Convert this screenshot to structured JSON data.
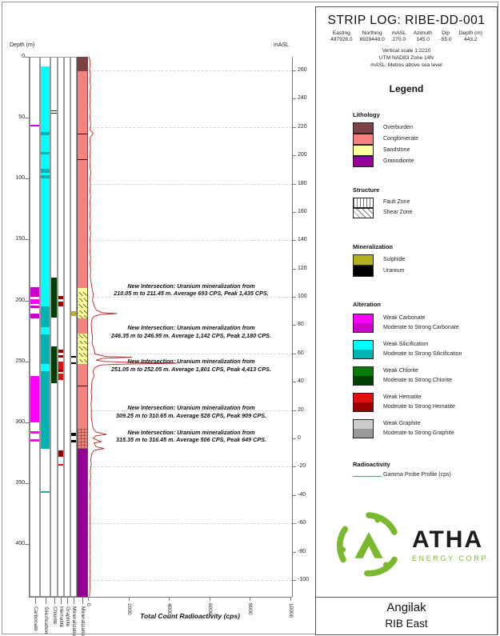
{
  "header": {
    "title": "STRIP LOG: RIBE-DD-001",
    "fields": [
      {
        "label": "Easting",
        "value": "497928.0"
      },
      {
        "label": "Northing",
        "value": "6929449.0"
      },
      {
        "label": "mASL",
        "value": "270.0"
      },
      {
        "label": "Azimuth",
        "value": "145.0"
      },
      {
        "label": "Dip",
        "value": "-55.0"
      },
      {
        "label": "Depth (m)",
        "value": "443.2"
      }
    ],
    "scale_lines": [
      "Vertical scale 1:2210",
      "UTM NAD83 Zone 14N",
      "mASL: Metres above sea level"
    ]
  },
  "legend": {
    "title": "Legend",
    "sections": [
      {
        "title": "Lithology",
        "type": "swatches",
        "items": [
          {
            "label": "Overburden",
            "color": "#7d4141"
          },
          {
            "label": "Conglomerate",
            "color": "#f4837f"
          },
          {
            "label": "Sandstone",
            "color": "#ffff99"
          },
          {
            "label": "Granodiorite",
            "color": "#950095"
          }
        ]
      },
      {
        "title": "Structure",
        "type": "patterns",
        "items": [
          {
            "label": "Fault Zone",
            "pattern": "fault"
          },
          {
            "label": "Shear Zone",
            "pattern": "shear"
          }
        ]
      },
      {
        "title": "Mineralization",
        "type": "swatches",
        "items": [
          {
            "label": "Sulphide",
            "color": "#b2b21f"
          },
          {
            "label": "Uranium",
            "color": "#000000"
          }
        ]
      },
      {
        "title": "Alteration",
        "type": "pairs",
        "items": [
          {
            "weak_label": "Weak Carbonate",
            "strong_label": "Moderate to Strong Carbonate",
            "weak_color": "#ff00ff",
            "strong_color": "#cc00cc"
          },
          {
            "weak_label": "Weak Silicification",
            "strong_label": "Moderate to Strong Silicification",
            "weak_color": "#00ffff",
            "strong_color": "#00b3b3"
          },
          {
            "weak_label": "Weak Chlorite",
            "strong_label": "Moderate to Strong Chlorite",
            "weak_color": "#0a7a0a",
            "strong_color": "#063f06"
          },
          {
            "weak_label": "Weak Hematite",
            "strong_label": "Moderate to Strong Hematite",
            "weak_color": "#e01010",
            "strong_color": "#9a0000"
          },
          {
            "weak_label": "Weak Graphite",
            "strong_label": "Moderate to Strong Graphite",
            "weak_color": "#cccccc",
            "strong_color": "#999999"
          }
        ]
      },
      {
        "title": "Radioactivity",
        "type": "line",
        "items": [
          {
            "label": "Gamma Probe Profile (cps)",
            "color": "#cc6666"
          }
        ]
      }
    ]
  },
  "logo": {
    "text": "ATHA",
    "subtitle": "ENERGY CORP.",
    "green": "#7ab82e"
  },
  "footer": {
    "project": "Angilak",
    "area": "RIB East"
  },
  "chart_data": {
    "type": "strip-log",
    "depth_axis": {
      "label": "Depth (m)",
      "ticks": [
        0,
        50,
        100,
        150,
        200,
        250,
        300,
        350,
        400
      ],
      "max_depth": 443.2
    },
    "masl_axis": {
      "label": "mASL",
      "collar_masl": 270.0,
      "ticks": [
        260,
        240,
        220,
        200,
        180,
        160,
        140,
        120,
        100,
        80,
        60,
        40,
        20,
        0,
        -20,
        -40,
        -60,
        -80,
        -100
      ]
    },
    "cps_axis": {
      "label": "Total Count Radioactivity (cps)",
      "ticks": [
        0,
        2000,
        4000,
        6000,
        8000,
        10000
      ],
      "max": 10000
    },
    "tracks": [
      {
        "name": "Carbonate",
        "weak_color": "#ff00ff",
        "strong_color": "#cc00cc",
        "segments": [
          {
            "from": 55.5,
            "to": 57,
            "level": "strong"
          },
          {
            "from": 189,
            "to": 197,
            "level": "strong"
          },
          {
            "from": 199,
            "to": 203,
            "level": "weak"
          },
          {
            "from": 204.5,
            "to": 206.5,
            "level": "strong"
          },
          {
            "from": 211,
            "to": 215,
            "level": "strong"
          },
          {
            "from": 262,
            "to": 300,
            "level": "weak"
          },
          {
            "from": 307.5,
            "to": 309.5,
            "level": "weak"
          },
          {
            "from": 314,
            "to": 316,
            "level": "weak"
          }
        ]
      },
      {
        "name": "Silicification",
        "weak_color": "#00ffff",
        "strong_color": "#00b3b3",
        "segments": [
          {
            "from": 8,
            "to": 62,
            "level": "weak"
          },
          {
            "from": 62,
            "to": 64.5,
            "level": "strong"
          },
          {
            "from": 64.5,
            "to": 78,
            "level": "weak"
          },
          {
            "from": 78,
            "to": 80,
            "level": "strong"
          },
          {
            "from": 80,
            "to": 92,
            "level": "weak"
          },
          {
            "from": 92,
            "to": 95,
            "level": "strong"
          },
          {
            "from": 95,
            "to": 97,
            "level": "weak"
          },
          {
            "from": 97,
            "to": 99.5,
            "level": "strong"
          },
          {
            "from": 99.5,
            "to": 205,
            "level": "weak"
          },
          {
            "from": 205,
            "to": 222,
            "level": "strong"
          },
          {
            "from": 222,
            "to": 228,
            "level": "weak"
          },
          {
            "from": 228,
            "to": 252,
            "level": "strong"
          },
          {
            "from": 252,
            "to": 258,
            "level": "weak"
          },
          {
            "from": 258,
            "to": 322,
            "level": "strong"
          },
          {
            "from": 356.5,
            "to": 358,
            "level": "strong"
          }
        ]
      },
      {
        "name": "Chlorite",
        "weak_color": "#0a7a0a",
        "strong_color": "#063f06",
        "segments": [
          {
            "from": 44,
            "to": 44.8,
            "level": "strong"
          },
          {
            "from": 45.8,
            "to": 46.6,
            "level": "strong"
          },
          {
            "from": 181,
            "to": 214,
            "level": "strong"
          },
          {
            "from": 238,
            "to": 268,
            "level": "strong"
          }
        ]
      },
      {
        "name": "Hematite",
        "weak_color": "#e01010",
        "strong_color": "#9a0000",
        "segments": [
          {
            "from": 196,
            "to": 199,
            "level": "strong"
          },
          {
            "from": 201,
            "to": 205,
            "level": "strong"
          },
          {
            "from": 240,
            "to": 243,
            "level": "strong"
          },
          {
            "from": 245,
            "to": 247,
            "level": "strong"
          },
          {
            "from": 250,
            "to": 257,
            "level": "weak"
          },
          {
            "from": 257,
            "to": 259,
            "level": "strong"
          },
          {
            "from": 260,
            "to": 265,
            "level": "weak"
          },
          {
            "from": 323,
            "to": 328,
            "level": "strong"
          },
          {
            "from": 334.5,
            "to": 335.5,
            "level": "weak"
          }
        ]
      },
      {
        "name": "Graphite",
        "weak_color": "#cccccc",
        "strong_color": "#999999",
        "segments": []
      },
      {
        "name": "Mineralization",
        "weak_color": "#b2b21f",
        "strong_color": "#000000",
        "segments": [
          {
            "from": 208.5,
            "to": 213,
            "level": "weak"
          },
          {
            "from": 245.8,
            "to": 247,
            "level": "strong"
          },
          {
            "from": 250.8,
            "to": 252.2,
            "level": "strong"
          },
          {
            "from": 308.8,
            "to": 311,
            "level": "strong"
          },
          {
            "from": 314.8,
            "to": 316.6,
            "level": "strong"
          }
        ]
      }
    ],
    "lithology": {
      "units": [
        {
          "from": 0,
          "to": 12,
          "unit": "Overburden"
        },
        {
          "from": 12,
          "to": 190,
          "unit": "Conglomerate"
        },
        {
          "from": 190,
          "to": 215,
          "unit": "Sandstone"
        },
        {
          "from": 215,
          "to": 227,
          "unit": "Conglomerate"
        },
        {
          "from": 227,
          "to": 252,
          "unit": "Sandstone"
        },
        {
          "from": 252,
          "to": 322,
          "unit": "Conglomerate"
        },
        {
          "from": 322,
          "to": 443.2,
          "unit": "Granodiorite"
        }
      ],
      "overlays": [
        {
          "from": 193,
          "to": 196,
          "pattern": "shear"
        },
        {
          "from": 198,
          "to": 201,
          "pattern": "shear"
        },
        {
          "from": 203,
          "to": 206,
          "pattern": "shear"
        },
        {
          "from": 208,
          "to": 211,
          "pattern": "shear"
        },
        {
          "from": 212,
          "to": 215,
          "pattern": "shear"
        },
        {
          "from": 228,
          "to": 231,
          "pattern": "shear"
        },
        {
          "from": 233,
          "to": 236,
          "pattern": "shear"
        },
        {
          "from": 238,
          "to": 241,
          "pattern": "shear"
        },
        {
          "from": 243,
          "to": 246,
          "pattern": "shear"
        },
        {
          "from": 248,
          "to": 251,
          "pattern": "shear"
        },
        {
          "from": 305,
          "to": 322,
          "pattern": "fault"
        }
      ],
      "contacts": [
        63,
        84,
        270
      ]
    },
    "gamma_profile": [
      [
        0,
        60
      ],
      [
        5,
        110
      ],
      [
        10,
        80
      ],
      [
        15,
        120
      ],
      [
        20,
        90
      ],
      [
        25,
        130
      ],
      [
        30,
        90
      ],
      [
        35,
        110
      ],
      [
        40,
        85
      ],
      [
        45,
        120
      ],
      [
        50,
        95
      ],
      [
        55,
        130
      ],
      [
        60,
        100
      ],
      [
        63,
        260
      ],
      [
        66,
        110
      ],
      [
        70,
        95
      ],
      [
        75,
        120
      ],
      [
        80,
        90
      ],
      [
        85,
        115
      ],
      [
        90,
        95
      ],
      [
        95,
        140
      ],
      [
        100,
        100
      ],
      [
        105,
        120
      ],
      [
        110,
        95
      ],
      [
        115,
        125
      ],
      [
        120,
        90
      ],
      [
        125,
        115
      ],
      [
        130,
        95
      ],
      [
        135,
        120
      ],
      [
        140,
        100
      ],
      [
        145,
        130
      ],
      [
        150,
        95
      ],
      [
        155,
        115
      ],
      [
        160,
        100
      ],
      [
        165,
        125
      ],
      [
        170,
        95
      ],
      [
        175,
        130
      ],
      [
        180,
        110
      ],
      [
        185,
        150
      ],
      [
        190,
        200
      ],
      [
        195,
        260
      ],
      [
        200,
        220
      ],
      [
        205,
        320
      ],
      [
        208,
        420
      ],
      [
        210,
        693
      ],
      [
        210.7,
        1435
      ],
      [
        211.5,
        600
      ],
      [
        213,
        300
      ],
      [
        215,
        200
      ],
      [
        220,
        160
      ],
      [
        225,
        180
      ],
      [
        230,
        220
      ],
      [
        235,
        200
      ],
      [
        240,
        300
      ],
      [
        244,
        350
      ],
      [
        246,
        900
      ],
      [
        246.6,
        2180
      ],
      [
        247.5,
        700
      ],
      [
        249,
        400
      ],
      [
        250,
        800
      ],
      [
        251,
        2500
      ],
      [
        251.5,
        4413
      ],
      [
        252.3,
        1500
      ],
      [
        253,
        600
      ],
      [
        255,
        350
      ],
      [
        258,
        250
      ],
      [
        262,
        300
      ],
      [
        266,
        200
      ],
      [
        270,
        180
      ],
      [
        275,
        160
      ],
      [
        280,
        180
      ],
      [
        285,
        150
      ],
      [
        290,
        170
      ],
      [
        295,
        160
      ],
      [
        300,
        200
      ],
      [
        305,
        250
      ],
      [
        308,
        400
      ],
      [
        309.9,
        909
      ],
      [
        311,
        400
      ],
      [
        313,
        250
      ],
      [
        315,
        500
      ],
      [
        315.9,
        649
      ],
      [
        317,
        300
      ],
      [
        320,
        400
      ],
      [
        321.5,
        800
      ],
      [
        323,
        300
      ],
      [
        326,
        180
      ],
      [
        330,
        140
      ],
      [
        335,
        160
      ],
      [
        340,
        110
      ],
      [
        345,
        130
      ],
      [
        350,
        100
      ],
      [
        355,
        120
      ],
      [
        360,
        95
      ],
      [
        365,
        115
      ],
      [
        370,
        90
      ],
      [
        375,
        110
      ],
      [
        380,
        90
      ],
      [
        385,
        110
      ],
      [
        390,
        85
      ],
      [
        395,
        105
      ],
      [
        400,
        90
      ],
      [
        405,
        110
      ],
      [
        410,
        85
      ],
      [
        415,
        105
      ],
      [
        420,
        90
      ],
      [
        425,
        110
      ],
      [
        430,
        85
      ],
      [
        435,
        100
      ],
      [
        440,
        80
      ],
      [
        443,
        70
      ]
    ],
    "annotations": [
      {
        "top_depth": 185,
        "line1": "New Intersection: Uranium mineralization from",
        "line2": "210.05 m to 211.45 m. Average 693 CPS, Peak 1,435 CPS."
      },
      {
        "top_depth": 219.5,
        "line1": "New Intersection: Uranium mineralization from",
        "line2": "246.35 m to 246.95 m. Average 1,142 CPS, Peak 2,180 CPS."
      },
      {
        "top_depth": 247,
        "line1": "New Intersection: Uranium mineralization from",
        "line2": "251.05 m to 252.05 m. Average 1,801 CPS, Peak 4,413 CPS."
      },
      {
        "top_depth": 285,
        "line1": "New Intersection: Uranium mineralization from",
        "line2": "309.25 m to 310.65 m. Average 528 CPS, Peak 909 CPS."
      },
      {
        "top_depth": 305,
        "line1": "New Intersection: Uranium mineralization from",
        "line2": "315.35 m to 316.45 m. Average 506 CPS, Peak 649 CPS."
      }
    ]
  }
}
